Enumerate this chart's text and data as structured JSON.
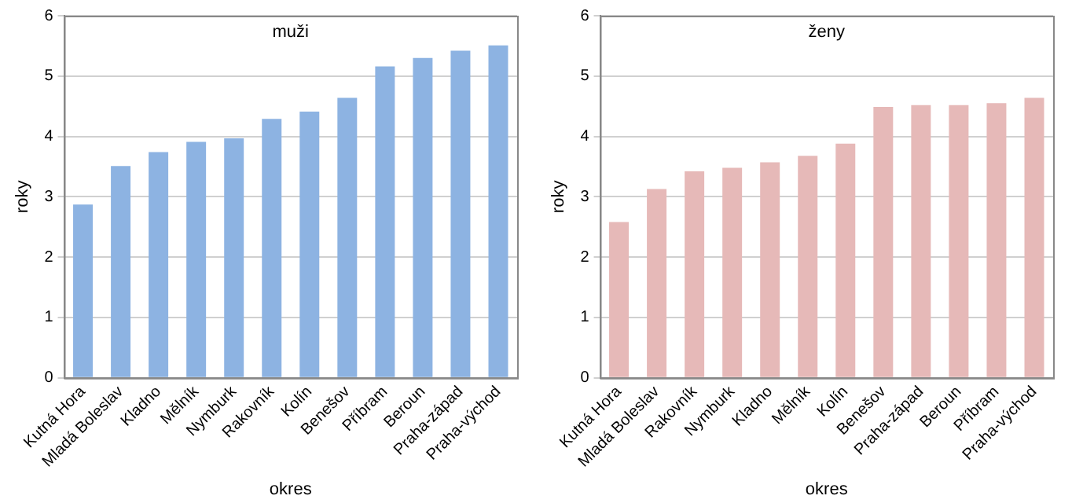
{
  "chart_data": [
    {
      "type": "bar",
      "title": "muži",
      "xlabel": "okres",
      "ylabel": "roky",
      "categories": [
        "Kutná Hora",
        "Mladá Boleslav",
        "Kladno",
        "Mělník",
        "Nymburk",
        "Rakovník",
        "Kolín",
        "Benešov",
        "Příbram",
        "Beroun",
        "Praha-západ",
        "Praha-východ"
      ],
      "values": [
        2.87,
        3.51,
        3.74,
        3.91,
        3.97,
        4.29,
        4.41,
        4.64,
        5.16,
        5.3,
        5.42,
        5.51
      ],
      "color": "#8db3e2",
      "ylim": [
        0,
        6
      ],
      "yticks": [
        0,
        1,
        2,
        3,
        4,
        5,
        6
      ],
      "grid": "y",
      "legend": false
    },
    {
      "type": "bar",
      "title": "ženy",
      "xlabel": "okres",
      "ylabel": "roky",
      "categories": [
        "Kutná Hora",
        "Mladá Boleslav",
        "Rakovník",
        "Nymburk",
        "Kladno",
        "Mělník",
        "Kolín",
        "Benešov",
        "Praha-západ",
        "Beroun",
        "Příbram",
        "Praha-východ"
      ],
      "values": [
        2.58,
        3.13,
        3.42,
        3.48,
        3.57,
        3.68,
        3.88,
        4.49,
        4.52,
        4.52,
        4.55,
        4.64
      ],
      "color": "#e6b9b8",
      "ylim": [
        0,
        6
      ],
      "yticks": [
        0,
        1,
        2,
        3,
        4,
        5,
        6
      ],
      "grid": "y",
      "legend": false
    }
  ]
}
